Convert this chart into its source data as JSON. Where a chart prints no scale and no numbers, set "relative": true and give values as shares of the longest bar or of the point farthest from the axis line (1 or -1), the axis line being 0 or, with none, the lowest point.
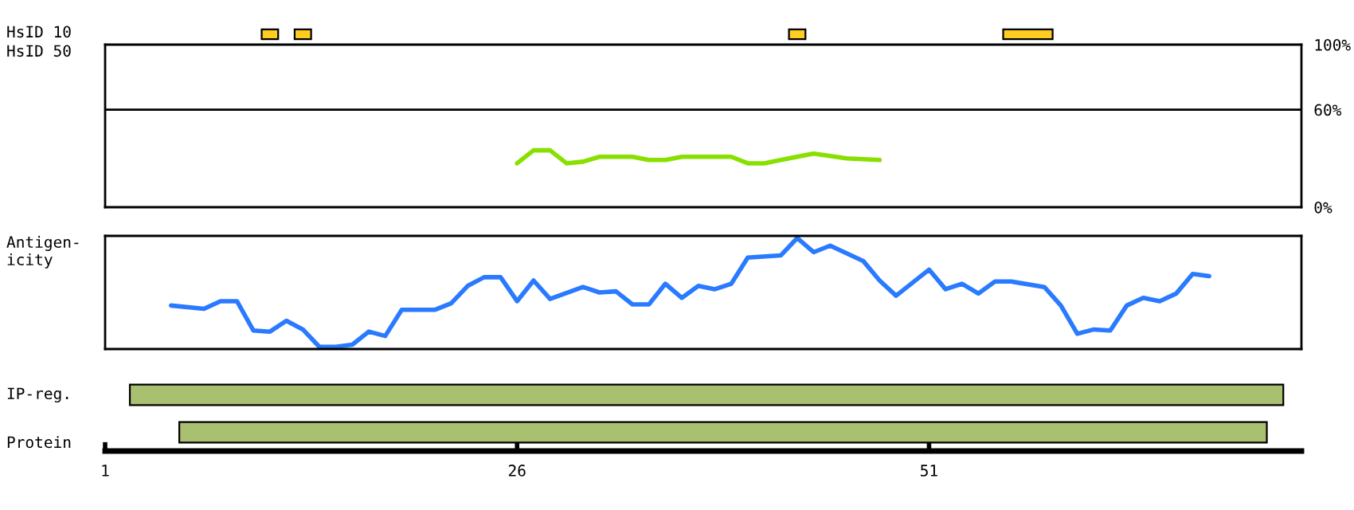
{
  "chart_data": [
    {
      "type": "bar",
      "orientation": "horizontal",
      "ylabel": "HsID 10",
      "categories": [
        null
      ],
      "xlim": [
        1,
        73.6
      ],
      "tick_labels": false,
      "series": [
        {
          "color": "#ffcc22",
          "values": [
            1
          ],
          "base": [
            10.5
          ]
        },
        {
          "color": "#ffcc22",
          "values": [
            1
          ],
          "base": [
            12.5
          ]
        },
        {
          "color": "#ffcc22",
          "values": [
            1
          ],
          "base": [
            42.5
          ]
        },
        {
          "color": "#ffcc22",
          "values": [
            3
          ],
          "base": [
            55.5
          ]
        }
      ]
    },
    {
      "type": "line",
      "ylabel": "HsID 50",
      "xlim": [
        1,
        73.6
      ],
      "ylim": [
        0,
        100
      ],
      "yticks": [
        {
          "value": 0,
          "label": "0%"
        },
        {
          "value": 60,
          "label": "60%"
        },
        {
          "value": 100,
          "label": "100%"
        }
      ],
      "tick_labels": "y",
      "ref_lines": [
        {
          "axis": "y",
          "value": 60,
          "color": "#000000"
        }
      ],
      "series": [
        {
          "color": "#88e000",
          "x": [
            26,
            27,
            28,
            29,
            30,
            31,
            33,
            34,
            35,
            36,
            39,
            40,
            41,
            42,
            44,
            46,
            48
          ],
          "values": [
            27,
            35,
            35,
            27,
            28,
            31,
            31,
            29,
            29,
            31,
            31,
            27,
            27,
            29,
            33,
            30,
            29
          ]
        }
      ]
    },
    {
      "type": "line",
      "ylabel": "Antigen-\nicity",
      "relative": true,
      "xlim": [
        1,
        73.6
      ],
      "tick_labels": false,
      "series": [
        {
          "color": "#2a7aff",
          "x": [
            5,
            7,
            8,
            9,
            10,
            11,
            12,
            13,
            14,
            15,
            16,
            17,
            18,
            19,
            21,
            22,
            23,
            24,
            25,
            26,
            27,
            28,
            30,
            31,
            32,
            33,
            34,
            35,
            36,
            37,
            38,
            39,
            40,
            42,
            43,
            44,
            45,
            47,
            48,
            49,
            51,
            52,
            53,
            54,
            55,
            56,
            58,
            59,
            60,
            61,
            62,
            63,
            64,
            65,
            66,
            67,
            68
          ],
          "values": [
            0.38,
            0.35,
            0.42,
            0.42,
            0.15,
            0.14,
            0.24,
            0.16,
            0,
            0,
            0.02,
            0.14,
            0.1,
            0.34,
            0.34,
            0.4,
            0.56,
            0.64,
            0.64,
            0.42,
            0.61,
            0.44,
            0.55,
            0.5,
            0.51,
            0.39,
            0.39,
            0.58,
            0.45,
            0.56,
            0.53,
            0.58,
            0.82,
            0.84,
            1,
            0.87,
            0.93,
            0.79,
            0.61,
            0.47,
            0.71,
            0.53,
            0.58,
            0.49,
            0.6,
            0.6,
            0.55,
            0.38,
            0.12,
            0.16,
            0.15,
            0.38,
            0.45,
            0.42,
            0.49,
            0.67,
            0.65
          ]
        }
      ]
    },
    {
      "type": "bar",
      "orientation": "horizontal",
      "ylabel": "IP-reg.",
      "xlabel": "Protein",
      "categories": [
        null,
        null
      ],
      "xlim": [
        1,
        73.6
      ],
      "xticks": [
        1,
        26,
        51
      ],
      "tick_labels": "x",
      "series": [
        {
          "color": "#a8c070",
          "values": [
            70,
            66
          ],
          "base": [
            2.5,
            5.5
          ]
        }
      ]
    }
  ]
}
